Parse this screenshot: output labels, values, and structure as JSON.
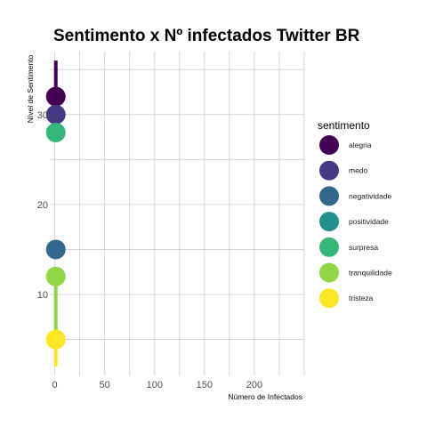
{
  "chart_data": {
    "type": "scatter",
    "title": "Sentimento x Nº infectados Twitter BR",
    "xlabel": "Número de Infectados",
    "ylabel": "Nível de Sentimento",
    "xlim": [
      -5,
      250
    ],
    "ylim": [
      1,
      37
    ],
    "x_ticks": [
      0,
      50,
      100,
      150,
      200
    ],
    "y_ticks": [
      10,
      20,
      30
    ],
    "grid": true,
    "legend": {
      "title": "sentimento",
      "placement": "right"
    },
    "series": [
      {
        "name": "alegria",
        "color": "#440154",
        "x": 1,
        "y": 32,
        "line": [
          32,
          36
        ]
      },
      {
        "name": "medo",
        "color": "#443983",
        "x": 1,
        "y": 30
      },
      {
        "name": "negatividade",
        "color": "#31688E",
        "x": 1,
        "y": 15
      },
      {
        "name": "positividade",
        "color": "#21908C",
        "x": null,
        "y": null
      },
      {
        "name": "surpresa",
        "color": "#35B779",
        "x": 1,
        "y": 28
      },
      {
        "name": "tranquilidade",
        "color": "#8FD744",
        "x": 1,
        "y": 12,
        "line": [
          5,
          12
        ]
      },
      {
        "name": "tristeza",
        "color": "#FDE725",
        "x": 1,
        "y": 5,
        "line": [
          2,
          5
        ]
      }
    ]
  }
}
